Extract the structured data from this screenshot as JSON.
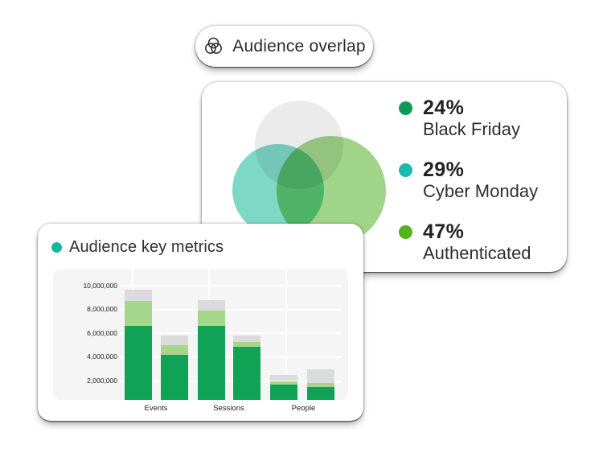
{
  "background": "#ffffff",
  "pill": {
    "label": "Audience overlap",
    "icon": "venn-diagram-icon",
    "text_color": "#2b2b2b"
  },
  "overlap_card": {
    "venn_colors": {
      "gray": "#EBEBEB",
      "teal": "#7ED8C6",
      "green": "#A0D489"
    }
  },
  "metrics_card": {
    "title": "Audience key metrics",
    "title_dot_color": "#14B6A0"
  },
  "chart_data": [
    {
      "type": "venn",
      "title": "Audience overlap",
      "sets": [
        {
          "percent": 24,
          "percent_label": "24%",
          "label": "Black Friday",
          "dot_color": "#0D9A58"
        },
        {
          "percent": 29,
          "percent_label": "29%",
          "label": "Cyber Monday",
          "dot_color": "#1CBAAC"
        },
        {
          "percent": 47,
          "percent_label": "47%",
          "label": "Authenticated",
          "dot_color": "#52B220"
        }
      ],
      "circle_colors": [
        "#EBEBEB",
        "#7ED8C6",
        "#A0D489"
      ],
      "legend_position": "right"
    },
    {
      "type": "bar",
      "stacked": true,
      "title": "Audience key metrics",
      "categories": [
        "Events",
        "Sessions",
        "People"
      ],
      "bars_per_category": 2,
      "series": [
        {
          "name": "primary-green",
          "color": "#10A356",
          "values": [
            6600000,
            4200000,
            6600000,
            4900000,
            1700000,
            1500000
          ]
        },
        {
          "name": "light-green",
          "color": "#A5D68B",
          "values": [
            2100000,
            800000,
            1300000,
            400000,
            300000,
            300000
          ]
        },
        {
          "name": "gray",
          "color": "#DBDBDB",
          "values": [
            1000000,
            800000,
            900000,
            500000,
            500000,
            1200000
          ]
        }
      ],
      "bar_totals": [
        9700000,
        5800000,
        8800000,
        5800000,
        2500000,
        3000000
      ],
      "y_ticks": [
        {
          "value": 10000000,
          "label": "10,000,000"
        },
        {
          "value": 8000000,
          "label": "8,000,000"
        },
        {
          "value": 6000000,
          "label": "6,000,000"
        },
        {
          "value": 4000000,
          "label": "4,000,000"
        },
        {
          "value": 2000000,
          "label": "2,000,000"
        }
      ],
      "ylim": [
        0,
        11000000
      ],
      "xlabel": "",
      "ylabel": "",
      "grid": true,
      "plot_bg": "#F5F5F5",
      "grid_color": "#FFFFFF"
    }
  ]
}
